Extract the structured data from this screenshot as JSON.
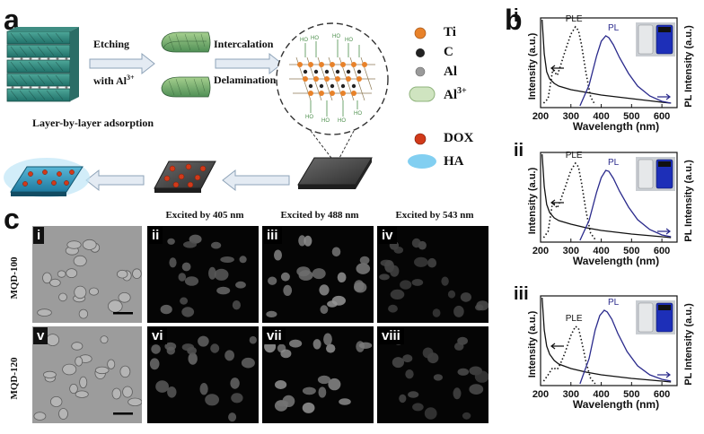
{
  "panel_a": {
    "letter": "a",
    "step_etching_1": "Etching",
    "step_etching_2": "with Al",
    "step_etching_sup": "3+",
    "step_intercalation": "Intercalation",
    "step_delamination": "Delamination",
    "step_lbl": "Layer-by-layer adsorption",
    "legend": [
      {
        "label": "Ti",
        "color": "#e8822a"
      },
      {
        "label": "C",
        "color": "#222222"
      },
      {
        "label": "Al",
        "color": "#9a9a9a"
      },
      {
        "label": "Al",
        "sup": "3+",
        "color": "#cfe4c0"
      },
      {
        "label": "DOX",
        "color": "#d13a1a"
      },
      {
        "label": "HA",
        "color": "#6cc7ee"
      }
    ]
  },
  "panel_b": {
    "letter": "b",
    "xlabel": "Wavelength (nm)",
    "ylabel_left": "Intensity (a.u.)",
    "ylabel_right": "PL Intensity (a.u.)",
    "ple_label": "PLE",
    "pl_label": "PL",
    "subpanels": [
      "i",
      "ii",
      "iii"
    ]
  },
  "chart_data": [
    {
      "type": "line",
      "panel": "i",
      "xlim": [
        200,
        650
      ],
      "x_ticks": [
        200,
        300,
        400,
        500,
        600
      ],
      "xlabel": "Wavelength (nm)",
      "ylabel": "Intensity (a.u.)",
      "series": [
        {
          "name": "absorption",
          "style": "solid",
          "color": "#111111",
          "x": [
            205,
            212,
            220,
            230,
            245,
            260,
            300,
            350,
            400,
            500,
            600,
            630
          ],
          "y": [
            0.98,
            0.6,
            0.4,
            0.32,
            0.27,
            0.24,
            0.2,
            0.17,
            0.14,
            0.1,
            0.06,
            0.05
          ]
        },
        {
          "name": "PLE",
          "style": "dotted",
          "color": "#111111",
          "x": [
            210,
            225,
            240,
            255,
            265,
            280,
            300,
            315,
            325,
            335,
            350,
            365,
            380
          ],
          "y": [
            0.05,
            0.1,
            0.42,
            0.36,
            0.46,
            0.62,
            0.82,
            0.9,
            0.86,
            0.7,
            0.38,
            0.12,
            0.03
          ]
        },
        {
          "name": "PL",
          "style": "solid",
          "color": "#2a2a8c",
          "x": [
            330,
            360,
            385,
            400,
            415,
            425,
            440,
            460,
            490,
            520,
            560,
            600,
            630
          ],
          "y": [
            0.02,
            0.25,
            0.58,
            0.74,
            0.8,
            0.78,
            0.7,
            0.56,
            0.38,
            0.24,
            0.13,
            0.07,
            0.05
          ]
        }
      ]
    },
    {
      "type": "line",
      "panel": "ii",
      "xlim": [
        200,
        650
      ],
      "x_ticks": [
        200,
        300,
        400,
        500,
        600
      ],
      "xlabel": "Wavelength (nm)",
      "ylabel": "Intensity (a.u.)",
      "series": [
        {
          "name": "absorption",
          "style": "solid",
          "color": "#111111",
          "x": [
            205,
            212,
            220,
            230,
            245,
            260,
            300,
            350,
            400,
            500,
            600,
            630
          ],
          "y": [
            0.98,
            0.62,
            0.42,
            0.33,
            0.27,
            0.24,
            0.2,
            0.16,
            0.13,
            0.09,
            0.06,
            0.05
          ]
        },
        {
          "name": "PLE",
          "style": "dotted",
          "color": "#111111",
          "x": [
            210,
            225,
            240,
            255,
            265,
            280,
            300,
            315,
            325,
            335,
            350,
            365,
            380
          ],
          "y": [
            0.05,
            0.12,
            0.45,
            0.38,
            0.46,
            0.6,
            0.8,
            0.88,
            0.84,
            0.66,
            0.34,
            0.1,
            0.03
          ]
        },
        {
          "name": "PL",
          "style": "solid",
          "color": "#2a2a8c",
          "x": [
            330,
            360,
            385,
            400,
            415,
            425,
            440,
            460,
            490,
            520,
            560,
            600,
            630
          ],
          "y": [
            0.02,
            0.24,
            0.56,
            0.72,
            0.8,
            0.79,
            0.71,
            0.57,
            0.39,
            0.25,
            0.14,
            0.08,
            0.06
          ]
        }
      ]
    },
    {
      "type": "line",
      "panel": "iii",
      "xlim": [
        200,
        650
      ],
      "x_ticks": [
        200,
        300,
        400,
        500,
        600
      ],
      "xlabel": "Wavelength (nm)",
      "ylabel": "Intensity (a.u.)",
      "series": [
        {
          "name": "absorption",
          "style": "solid",
          "color": "#111111",
          "x": [
            205,
            212,
            220,
            230,
            245,
            260,
            300,
            350,
            400,
            500,
            600,
            630
          ],
          "y": [
            0.98,
            0.62,
            0.44,
            0.35,
            0.28,
            0.24,
            0.19,
            0.15,
            0.12,
            0.08,
            0.05,
            0.04
          ]
        },
        {
          "name": "PLE",
          "style": "dotted",
          "color": "#111111",
          "x": [
            210,
            225,
            240,
            255,
            265,
            280,
            300,
            315,
            325,
            335,
            350,
            365,
            380
          ],
          "y": [
            0.05,
            0.12,
            0.2,
            0.18,
            0.24,
            0.36,
            0.56,
            0.66,
            0.64,
            0.5,
            0.26,
            0.08,
            0.02
          ]
        },
        {
          "name": "PL",
          "style": "solid",
          "color": "#2a2a8c",
          "x": [
            330,
            360,
            380,
            395,
            410,
            420,
            435,
            455,
            485,
            520,
            560,
            600,
            630
          ],
          "y": [
            0.02,
            0.3,
            0.62,
            0.78,
            0.84,
            0.82,
            0.74,
            0.58,
            0.38,
            0.22,
            0.12,
            0.07,
            0.05
          ]
        }
      ]
    }
  ],
  "panel_c": {
    "letter": "c",
    "col_headers": [
      "Excited by 405 nm",
      "Excited by 488 nm",
      "Excited by 543 nm"
    ],
    "rows": [
      {
        "label": "MQD-100",
        "cells": [
          "i",
          "ii",
          "iii",
          "iv"
        ]
      },
      {
        "label": "MQD-120",
        "cells": [
          "v",
          "vi",
          "vii",
          "viii"
        ]
      }
    ]
  }
}
